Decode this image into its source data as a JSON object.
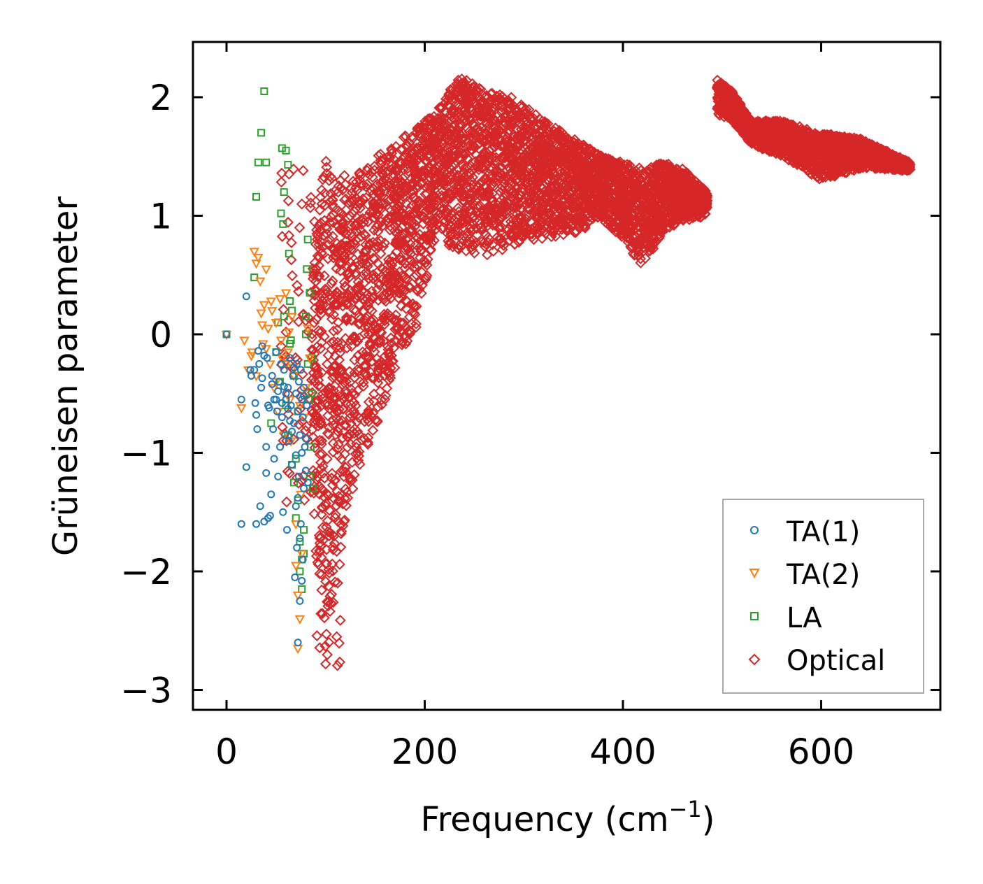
{
  "chart_data": {
    "type": "scatter",
    "title": "",
    "xlabel": "Frequency (cm",
    "xlabel_unit_exponent": "−1",
    "xlabel_close": ")",
    "ylabel": "Grüneisen parameter",
    "xlim": [
      -30,
      720
    ],
    "ylim": [
      -3.15,
      2.48
    ],
    "x_ticks": [
      0,
      200,
      400,
      600
    ],
    "x_tick_labels": [
      "0",
      "200",
      "400",
      "600"
    ],
    "y_ticks": [
      -3,
      -2,
      -1,
      0,
      1,
      2
    ],
    "y_tick_labels": [
      "−3",
      "−2",
      "−1",
      "0",
      "1",
      "2"
    ],
    "grid": false,
    "legend_position": "bottom-right",
    "series": [
      {
        "name": "TA(1)",
        "marker": "circle",
        "color": "#1f77b4",
        "x": [
          0,
          15,
          15,
          20,
          20,
          24,
          29,
          30,
          31,
          33,
          34,
          35,
          36,
          38,
          40,
          41,
          42,
          43,
          45,
          46,
          47,
          48,
          50,
          51,
          52,
          53,
          54,
          55,
          56,
          57,
          58,
          59,
          60,
          61,
          62,
          63,
          64,
          65,
          66,
          67,
          68,
          69,
          70,
          70,
          71,
          71,
          72,
          72,
          73,
          73,
          74,
          74,
          75,
          75,
          76,
          76,
          77,
          77,
          78,
          78,
          79,
          80,
          81,
          82,
          40,
          44,
          48,
          36,
          32,
          28,
          58,
          62,
          66,
          70,
          72,
          74,
          76,
          78,
          80,
          60,
          64,
          68,
          50,
          46,
          42,
          38,
          30,
          25,
          52,
          56
        ],
        "y": [
          0.0,
          -0.55,
          -1.6,
          0.32,
          -1.12,
          -0.3,
          -0.58,
          -1.6,
          -0.8,
          -0.25,
          -1.45,
          -0.45,
          -0.1,
          -1.58,
          -0.95,
          -0.2,
          -1.55,
          -0.62,
          -1.35,
          -0.35,
          -0.8,
          -0.55,
          -0.15,
          -0.65,
          -1.2,
          -0.4,
          -0.95,
          -0.25,
          -0.7,
          -1.5,
          -0.3,
          -0.85,
          -0.55,
          -1.65,
          -0.45,
          -0.9,
          -0.2,
          -0.6,
          -1.1,
          -0.35,
          -0.75,
          -2.05,
          -1.45,
          -0.5,
          -1.8,
          -0.25,
          -2.6,
          -0.65,
          -1.2,
          -0.4,
          -2.25,
          -0.85,
          -1.6,
          -0.3,
          -1.0,
          -0.55,
          -1.9,
          -0.7,
          -1.3,
          -0.45,
          -0.95,
          -1.15,
          -0.6,
          -1.25,
          -1.17,
          -1.53,
          -1.05,
          -0.37,
          -0.14,
          -0.3,
          -0.44,
          -0.63,
          -0.82,
          -1.02,
          -1.38,
          -1.72,
          -2.08,
          -0.52,
          -0.88,
          -0.5,
          -0.73,
          -0.28,
          -0.55,
          -0.42,
          -0.6,
          -0.18,
          -0.68,
          -0.35,
          -0.48,
          -0.58
        ]
      },
      {
        "name": "TA(2)",
        "marker": "triangle",
        "color": "#ff7f0e",
        "x": [
          0,
          15,
          18,
          22,
          25,
          28,
          30,
          32,
          35,
          37,
          40,
          42,
          44,
          46,
          48,
          50,
          52,
          54,
          56,
          58,
          60,
          62,
          64,
          66,
          68,
          70,
          72,
          74,
          76,
          78,
          80,
          82,
          84,
          38,
          36,
          30,
          26,
          45,
          55,
          65,
          75,
          70,
          72,
          74,
          60,
          50,
          40,
          34,
          63,
          67
        ],
        "y": [
          0.0,
          -0.62,
          -0.05,
          -0.3,
          -0.18,
          0.7,
          0.6,
          0.65,
          0.18,
          -0.08,
          0.55,
          0.05,
          -0.25,
          0.2,
          -0.45,
          0.1,
          -0.65,
          0.3,
          -0.2,
          -0.85,
          0.35,
          -0.15,
          -0.55,
          0.15,
          -0.35,
          -1.6,
          -2.65,
          -2.4,
          -1.85,
          -0.7,
          -0.45,
          0.05,
          -0.2,
          0.25,
          0.08,
          -0.35,
          -0.15,
          0.28,
          -0.05,
          -0.9,
          -1.35,
          -1.95,
          -2.2,
          -0.6,
          -0.25,
          -0.4,
          -0.12,
          0.45,
          0.02,
          -0.28
        ]
      },
      {
        "name": "LA",
        "marker": "square",
        "color": "#2ca02c",
        "x": [
          0,
          28,
          30,
          32,
          35,
          38,
          40,
          55,
          56,
          57,
          58,
          60,
          62,
          63,
          64,
          65,
          66,
          68,
          70,
          72,
          74,
          76,
          78,
          80,
          81,
          82,
          83,
          84,
          85,
          86,
          87,
          45,
          50,
          52,
          54,
          60,
          66,
          70,
          74,
          78,
          82,
          86,
          62,
          68,
          72,
          76,
          80,
          84,
          58,
          64
        ],
        "y": [
          0.0,
          0.48,
          1.16,
          1.45,
          1.7,
          2.05,
          1.45,
          1.02,
          1.57,
          0.93,
          1.2,
          1.55,
          1.43,
          0.68,
          0.28,
          -0.05,
          0.2,
          -0.35,
          -1.05,
          -1.4,
          -1.75,
          -2.15,
          -1.85,
          0.15,
          0.55,
          0.8,
          -0.55,
          0.35,
          -0.95,
          -0.2,
          -1.3,
          -0.75,
          -0.15,
          0.1,
          -0.4,
          -0.6,
          -1.1,
          -1.55,
          -2.0,
          -1.65,
          -0.25,
          -0.5,
          -0.85,
          -1.25,
          -0.65,
          -1.9,
          0.0,
          -1.2,
          0.15,
          -0.08
        ]
      },
      {
        "name": "Optical",
        "marker": "diamond",
        "color": "#d62728"
      }
    ]
  }
}
